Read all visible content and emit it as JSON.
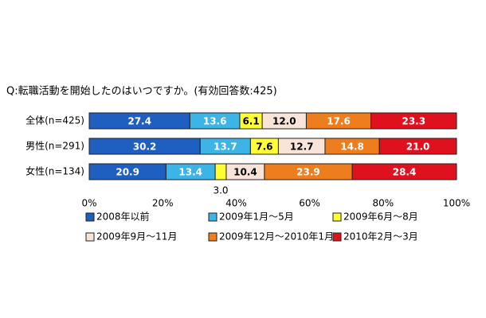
{
  "chart_data": {
    "type": "stacked-bar-horizontal",
    "title": "Q:転職活動を開始したのはいつですか。(有効回答数:425)",
    "categories": [
      "全体(n=425)",
      "男性(n=291)",
      "女性(n=134)"
    ],
    "series": [
      {
        "name": "2008年以前",
        "color": "#1f5fc0",
        "values": [
          27.4,
          30.2,
          20.9
        ],
        "value_labels": [
          "27.4",
          "30.2",
          "20.9"
        ]
      },
      {
        "name": "2009年1月～5月",
        "color": "#3cb4e6",
        "values": [
          13.6,
          13.7,
          13.4
        ],
        "value_labels": [
          "13.6",
          "13.7",
          "13.4"
        ]
      },
      {
        "name": "2009年6月～8月",
        "color": "#ffff33",
        "values": [
          6.1,
          7.6,
          3.0
        ],
        "value_labels": [
          "6.1",
          "7.6",
          "3.0"
        ]
      },
      {
        "name": "2009年9月～11月",
        "color": "#f8e4d8",
        "values": [
          12.0,
          12.7,
          10.4
        ],
        "value_labels": [
          "12.0",
          "12.7",
          "10.4"
        ]
      },
      {
        "name": "2009年12月～2010年1月",
        "color": "#ee7d1e",
        "values": [
          17.6,
          14.8,
          23.9
        ],
        "value_labels": [
          "17.6",
          "14.8",
          "23.9"
        ]
      },
      {
        "name": "2010年2月～3月",
        "color": "#e0111f",
        "values": [
          23.3,
          21.0,
          28.4
        ],
        "value_labels": [
          "23.3",
          "21.0",
          "28.4"
        ]
      }
    ],
    "xlim": [
      0,
      100
    ],
    "xticks": [
      {
        "value": 0,
        "label": "0%"
      },
      {
        "value": 20,
        "label": "20%"
      },
      {
        "value": 40,
        "label": "40%"
      },
      {
        "value": 60,
        "label": "60%"
      },
      {
        "value": 80,
        "label": "80%"
      },
      {
        "value": 100,
        "label": "100%"
      }
    ]
  }
}
